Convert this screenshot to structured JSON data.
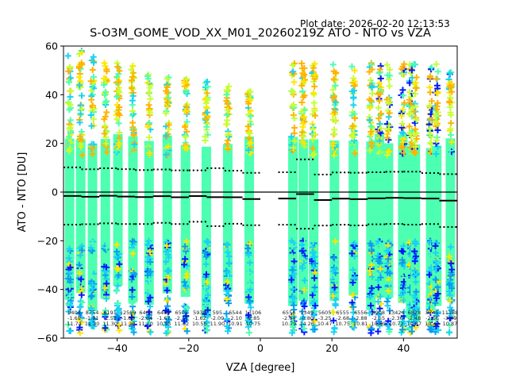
{
  "header": {
    "plot_date": "Plot date: 2026-02-20 12:13:53"
  },
  "chart_data": {
    "type": "scatter",
    "title": "S-O3M_GOME_VOD_XX_M01_20260219Z ATO - NTO vs VZA",
    "xlabel": "VZA [degree]",
    "ylabel": "ATO - NTO [DU]",
    "xlim": [
      -55,
      55
    ],
    "ylim": [
      -60,
      60
    ],
    "xticks": [
      -40,
      -20,
      0,
      20,
      40
    ],
    "xtick_labels": [
      "−40",
      "−20",
      "0",
      "20",
      "40"
    ],
    "yticks": [
      -60,
      -40,
      -20,
      0,
      20,
      40,
      60
    ],
    "ytick_labels": [
      "−60",
      "−40",
      "−20",
      "0",
      "20",
      "40",
      "60"
    ],
    "grid": false,
    "zero_line": 0,
    "column_vza": [
      -53.3,
      -50.2,
      -46.9,
      -43.3,
      -39.8,
      -35.6,
      -31.1,
      -26.0,
      -20.9,
      -15.1,
      -9.1,
      -3.1,
      9.1,
      12.0,
      14.9,
      20.7,
      26.0,
      30.9,
      33.3,
      35.8,
      39.8,
      42.0,
      43.3,
      47.6,
      49.3,
      53.1
    ],
    "bins": [
      {
        "center": -52,
        "range": [
          -55,
          -50
        ],
        "count": "9404",
        "mean": -1.61,
        "std": 11.74,
        "mean_label": "-1.61",
        "std_label": "11.74"
      },
      {
        "center": -47,
        "range": [
          -50,
          -45
        ],
        "count": "8754",
        "mean": -1.91,
        "std": 11.3,
        "mean_label": "-1.91",
        "std_label": "11.30"
      },
      {
        "center": -42,
        "range": [
          -45,
          -40
        ],
        "count": "6191",
        "mean": -1.52,
        "std": 11.3,
        "mean_label": "-1.52",
        "std_label": "11.30"
      },
      {
        "center": -37,
        "range": [
          -40,
          -35
        ],
        "count": "12599",
        "mean": -1.85,
        "std": 11.28,
        "mean_label": "-1.85",
        "std_label": "11.28"
      },
      {
        "center": -32,
        "range": [
          -35,
          -30
        ],
        "count": "6403",
        "mean": -2.04,
        "std": 11.1,
        "mean_label": "-2.04",
        "std_label": "11.10"
      },
      {
        "center": -27,
        "range": [
          -30,
          -25
        ],
        "count": "6466",
        "mean": -1.67,
        "std": 10.95,
        "mean_label": "-1.67",
        "std_label": "10.95"
      },
      {
        "center": -22,
        "range": [
          -25,
          -20
        ],
        "count": "6505",
        "mean": -2.11,
        "std": 11.02,
        "mean_label": "-2.11",
        "std_label": "11.02"
      },
      {
        "center": -17,
        "range": [
          -20,
          -15
        ],
        "count": "5930",
        "mean": -1.62,
        "std": 10.56,
        "mean_label": "-1.62",
        "std_label": "10.56"
      },
      {
        "center": -12,
        "range": [
          -15,
          -10
        ],
        "count": "595",
        "mean": -2.09,
        "std": 11.9,
        "mean_label": "-2.09",
        "std_label": "11.90"
      },
      {
        "center": -7,
        "range": [
          -10,
          -5
        ],
        "count": "6544",
        "mean": -2.1,
        "std": 10.91,
        "mean_label": "-2.10",
        "std_label": "10.91"
      },
      {
        "center": -2,
        "range": [
          -5,
          0
        ],
        "count": "13106",
        "mean": -2.85,
        "std": 10.75,
        "mean_label": "-2.85",
        "std_label": "10.75"
      },
      {
        "center": 8,
        "range": [
          5,
          10
        ],
        "count": "6556",
        "mean": -2.64,
        "std": 10.79,
        "mean_label": "-2.64",
        "std_label": "10.79"
      },
      {
        "center": 13,
        "range": [
          10,
          15
        ],
        "count": "1349",
        "mean": -0.8,
        "std": 14.26,
        "mean_label": "-0.80",
        "std_label": "14.26"
      },
      {
        "center": 18,
        "range": [
          15,
          20
        ],
        "count": "5605",
        "mean": -3.25,
        "std": 10.47,
        "mean_label": "-3.25",
        "std_label": "10.47"
      },
      {
        "center": 23,
        "range": [
          20,
          25
        ],
        "count": "6555",
        "mean": -2.68,
        "std": 10.75,
        "mean_label": "-2.68",
        "std_label": "10.75"
      },
      {
        "center": 28,
        "range": [
          25,
          30
        ],
        "count": "6556",
        "mean": -2.88,
        "std": 10.81,
        "mean_label": "-2.88",
        "std_label": "10.81"
      },
      {
        "center": 33,
        "range": [
          30,
          35
        ],
        "count": "6908",
        "mean": -2.55,
        "std": 10.69,
        "mean_label": "-2.55",
        "std_label": "10.69"
      },
      {
        "center": 38,
        "range": [
          35,
          40
        ],
        "count": "13424",
        "mean": -2.36,
        "std": 10.72,
        "mean_label": "-2.36",
        "std_label": "10.72"
      },
      {
        "center": 43,
        "range": [
          40,
          45
        ],
        "count": "6828",
        "mean": -2.48,
        "std": 10.87,
        "mean_label": "-2.48",
        "std_label": "10.87"
      },
      {
        "center": 48,
        "range": [
          45,
          50
        ],
        "count": "8745",
        "mean": -2.66,
        "std": 10.47,
        "mean_label": "-2.66",
        "std_label": "10.47"
      },
      {
        "center": 53,
        "range": [
          50,
          55
        ],
        "count": "11188",
        "mean": -3.49,
        "std": 10.87,
        "mean_label": "-3.49",
        "std_label": "10.87"
      }
    ],
    "colors": {
      "dense": "#4dffb0",
      "cyan": "#19d3f3",
      "light_blue": "#0a9cf0",
      "blue": "#0019ff",
      "yellow_green": "#c4ff33",
      "yellow": "#ffe600",
      "orange": "#ffb300",
      "line": "#000000"
    }
  }
}
